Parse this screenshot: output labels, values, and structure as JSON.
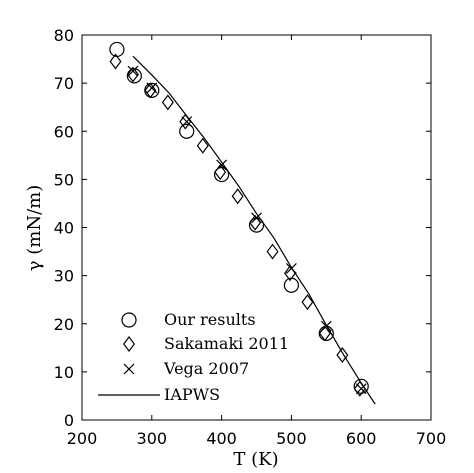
{
  "chart_data": {
    "type": "scatter",
    "xlabel": "T (K)",
    "ylabel": "γ (mN/m)",
    "xlim": [
      200,
      700
    ],
    "ylim": [
      0,
      80
    ],
    "xticks": [
      200,
      300,
      400,
      500,
      600,
      700
    ],
    "yticks": [
      0,
      10,
      20,
      30,
      40,
      50,
      60,
      70,
      80
    ],
    "grid": false,
    "legend_position": "bottom-left",
    "series": [
      {
        "name": "Our results",
        "marker": "circle",
        "x": [
          250,
          275,
          300,
          350,
          400,
          450,
          500,
          550,
          600
        ],
        "y": [
          77,
          71.5,
          68.5,
          60,
          51,
          40.5,
          28,
          18,
          7
        ]
      },
      {
        "name": "Sakamaki 2011",
        "marker": "diamond",
        "x": [
          248,
          273,
          298,
          323,
          348,
          373,
          398,
          423,
          448,
          473,
          498,
          523,
          548,
          573,
          598
        ],
        "y": [
          74.5,
          71.8,
          68.5,
          66,
          62,
          57,
          51.5,
          46.5,
          41,
          35,
          30.5,
          24.5,
          18,
          13.5,
          6.5
        ]
      },
      {
        "name": "Vega 2007",
        "marker": "x",
        "x": [
          273,
          300,
          350,
          400,
          450,
          500,
          550,
          600
        ],
        "y": [
          72.5,
          69,
          62,
          53,
          42,
          31.5,
          19.5,
          6.5
        ]
      },
      {
        "name": "IAPWS",
        "marker": "line",
        "x": [
          273,
          300,
          325,
          350,
          375,
          400,
          425,
          450,
          475,
          500,
          525,
          550,
          575,
          600,
          620
        ],
        "y": [
          75.6,
          71.7,
          67.9,
          63.2,
          58.6,
          53.6,
          48.5,
          42.9,
          37.8,
          31.7,
          26.2,
          19.7,
          13.5,
          7.7,
          3.3
        ]
      }
    ]
  }
}
